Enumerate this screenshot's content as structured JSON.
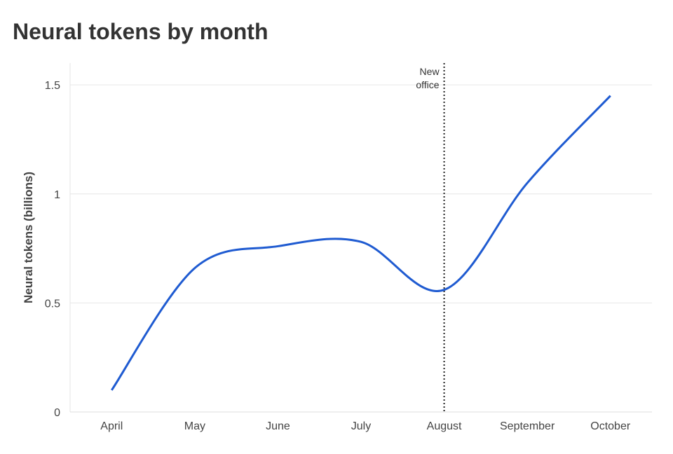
{
  "chart_data": {
    "type": "line",
    "title": "Neural tokens by month",
    "y_label": "Neural tokens (billions)",
    "categories": [
      "April",
      "May",
      "June",
      "July",
      "August",
      "September",
      "October"
    ],
    "series": [
      {
        "name": "Neural tokens",
        "color": "#1f5bd1",
        "values": [
          0.1,
          0.66,
          0.76,
          0.78,
          0.56,
          1.05,
          1.45
        ]
      }
    ],
    "ylim": [
      0,
      1.6
    ],
    "yticks": [
      0,
      0.5,
      1,
      1.5
    ],
    "grid": true,
    "annotation": {
      "lines": [
        "New",
        "office"
      ],
      "x": "August"
    }
  }
}
